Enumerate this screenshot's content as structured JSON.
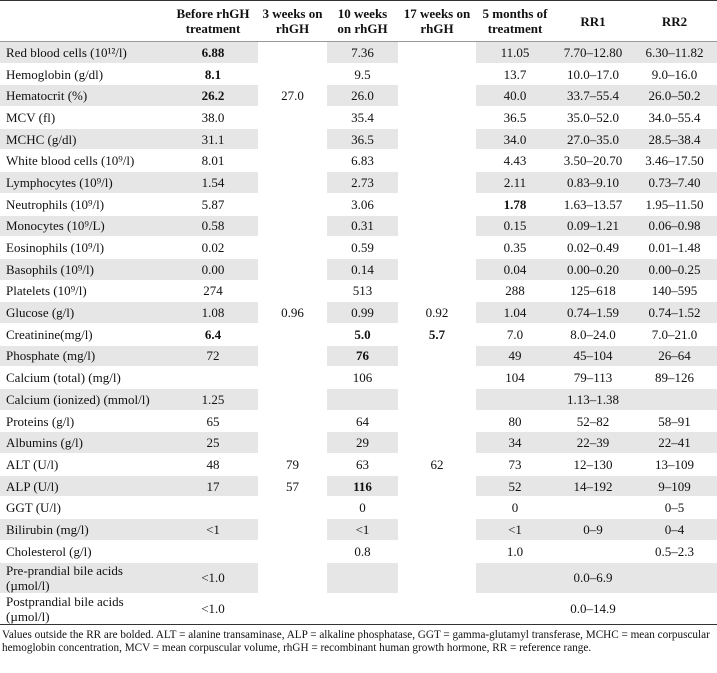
{
  "table": {
    "header": [
      null,
      "Before rhGH treatment",
      "3 weeks on rhGH",
      "10 weeks on rhGH",
      "17 weeks on rhGH",
      "5 months of treatment",
      "RR1",
      "RR2"
    ],
    "rows": [
      [
        "Red blood cells (10¹²/l)",
        {
          "text": "6.88",
          "bold": true
        },
        null,
        "7.36",
        null,
        "11.05",
        "7.70–12.80",
        "6.30–11.82"
      ],
      [
        "Hemoglobin (g/dl)",
        {
          "text": "8.1",
          "bold": true
        },
        null,
        "9.5",
        null,
        "13.7",
        "10.0–17.0",
        "9.0–16.0"
      ],
      [
        "Hematocrit (%)",
        {
          "text": "26.2",
          "bold": true
        },
        "27.0",
        "26.0",
        null,
        "40.0",
        "33.7–55.4",
        "26.0–50.2"
      ],
      [
        "MCV (fl)",
        "38.0",
        null,
        "35.4",
        null,
        "36.5",
        "35.0–52.0",
        "34.0–55.4"
      ],
      [
        "MCHC (g/dl)",
        "31.1",
        null,
        "36.5",
        null,
        "34.0",
        "27.0–35.0",
        "28.5–38.4"
      ],
      [
        "White blood cells (10⁹/l)",
        "8.01",
        null,
        "6.83",
        null,
        "4.43",
        "3.50–20.70",
        "3.46–17.50"
      ],
      [
        "Lymphocytes (10⁹/l)",
        "1.54",
        null,
        "2.73",
        null,
        "2.11",
        "0.83–9.10",
        "0.73–7.40"
      ],
      [
        "Neutrophils (10⁹/l)",
        "5.87",
        null,
        "3.06",
        null,
        {
          "text": "1.78",
          "bold": true
        },
        "1.63–13.57",
        "1.95–11.50"
      ],
      [
        "Monocytes (10⁹/L)",
        "0.58",
        null,
        "0.31",
        null,
        "0.15",
        "0.09–1.21",
        "0.06–0.98"
      ],
      [
        "Eosinophils (10⁹/l)",
        "0.02",
        null,
        "0.59",
        null,
        "0.35",
        "0.02–0.49",
        "0.01–1.48"
      ],
      [
        "Basophils (10⁹/l)",
        "0.00",
        null,
        "0.14",
        null,
        "0.04",
        "0.00–0.20",
        "0.00–0.25"
      ],
      [
        "Platelets (10⁹/l)",
        "274",
        null,
        "513",
        null,
        "288",
        "125–618",
        "140–595"
      ],
      [
        "Glucose (g/l)",
        "1.08",
        "0.96",
        "0.99",
        "0.92",
        "1.04",
        "0.74–1.59",
        "0.74–1.52"
      ],
      [
        "Creatinine(mg/l)",
        {
          "text": "6.4",
          "bold": true
        },
        null,
        {
          "text": "5.0",
          "bold": true
        },
        {
          "text": "5.7",
          "bold": true
        },
        "7.0",
        "8.0–24.0",
        "7.0–21.0"
      ],
      [
        "Phosphate (mg/l)",
        "72",
        null,
        {
          "text": "76",
          "bold": true
        },
        null,
        "49",
        "45–104",
        "26–64"
      ],
      [
        "Calcium (total) (mg/l)",
        null,
        null,
        "106",
        null,
        "104",
        "79–113",
        "89–126"
      ],
      [
        "Calcium (ionized) (mmol/l)",
        "1.25",
        null,
        null,
        null,
        null,
        "1.13–1.38",
        null
      ],
      [
        "Proteins (g/l)",
        "65",
        null,
        "64",
        null,
        "80",
        "52–82",
        "58–91"
      ],
      [
        "Albumins (g/l)",
        "25",
        null,
        "29",
        null,
        "34",
        "22–39",
        "22–41"
      ],
      [
        "ALT (U/l)",
        "48",
        "79",
        "63",
        "62",
        "73",
        "12–130",
        "13–109"
      ],
      [
        "ALP (U/l)",
        "17",
        "57",
        {
          "text": "116",
          "bold": true
        },
        null,
        "52",
        "14–192",
        "9–109"
      ],
      [
        "GGT (U/l)",
        null,
        null,
        "0",
        null,
        "0",
        null,
        "0–5"
      ],
      [
        "Bilirubin (mg/l)",
        "<1",
        null,
        "<1",
        null,
        "<1",
        "0–9",
        "0–4"
      ],
      [
        "Cholesterol (g/l)",
        null,
        null,
        "0.8",
        null,
        "1.0",
        null,
        "0.5–2.3"
      ],
      [
        "Pre-prandial bile acids (µmol/l)",
        "<1.0",
        null,
        null,
        null,
        null,
        "0.0–6.9",
        null
      ],
      [
        "Postprandial bile acids (µmol/l)",
        "<1.0",
        null,
        null,
        null,
        null,
        "0.0–14.9",
        null
      ]
    ],
    "footnote": "Values outside the RR are bolded. ALT = alanine transaminase, ALP = alkaline phosphatase, GGT = gamma-glutamyl transferase, MCHC = mean corpuscular hemoglobin concentration, MCV = mean corpuscular volume, rhGH = recombinant human growth hormone, RR = reference range."
  }
}
